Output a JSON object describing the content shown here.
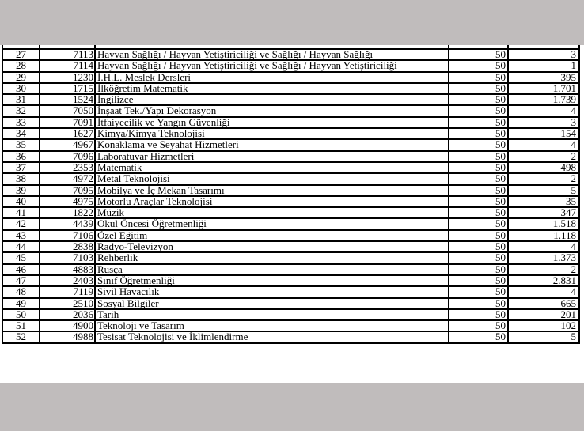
{
  "rows": [
    [
      "27",
      "7113",
      "Hayvan Sağlığı / Hayvan Yetiştiriciliği ve Sağlığı / Hayvan Sağlığı",
      "50",
      "3"
    ],
    [
      "28",
      "7114",
      "Hayvan Sağlığı / Hayvan Yetiştiriciliği ve Sağlığı / Hayvan Yetiştiriciliği",
      "50",
      "1"
    ],
    [
      "29",
      "1230",
      "İ.H.L. Meslek Dersleri",
      "50",
      "395"
    ],
    [
      "30",
      "1715",
      "İlköğretim Matematik",
      "50",
      "1.701"
    ],
    [
      "31",
      "1524",
      "İngilizce",
      "50",
      "1.739"
    ],
    [
      "32",
      "7050",
      "İnşaat Tek./Yapı Dekorasyon",
      "50",
      "4"
    ],
    [
      "33",
      "7091",
      "İtfaiyecilik ve Yangın Güvenliği",
      "50",
      "3"
    ],
    [
      "34",
      "1627",
      "Kimya/Kimya Teknolojisi",
      "50",
      "154"
    ],
    [
      "35",
      "4967",
      "Konaklama ve Seyahat Hizmetleri",
      "50",
      "4"
    ],
    [
      "36",
      "7096",
      "Laboratuvar Hizmetleri",
      "50",
      "2"
    ],
    [
      "37",
      "2353",
      "Matematik",
      "50",
      "498"
    ],
    [
      "38",
      "4972",
      "Metal Teknolojisi",
      "50",
      "2"
    ],
    [
      "39",
      "7095",
      "Mobilya ve İç Mekan Tasarımı",
      "50",
      "5"
    ],
    [
      "40",
      "4975",
      "Motorlu Araçlar Teknolojisi",
      "50",
      "35"
    ],
    [
      "41",
      "1822",
      "Müzik",
      "50",
      "347"
    ],
    [
      "42",
      "4439",
      "Okul Öncesi Öğretmenliği",
      "50",
      "1.518"
    ],
    [
      "43",
      "7106",
      "Özel Eğitim",
      "50",
      "1.118"
    ],
    [
      "44",
      "2838",
      "Radyo-Televizyon",
      "50",
      "4"
    ],
    [
      "45",
      "7103",
      "Rehberlik",
      "50",
      "1.373"
    ],
    [
      "46",
      "4883",
      "Rusça",
      "50",
      "2"
    ],
    [
      "47",
      "2403",
      "Sınıf Öğretmenliği",
      "50",
      "2.831"
    ],
    [
      "48",
      "7119",
      "Sivil Havacılık",
      "50",
      "4"
    ],
    [
      "49",
      "2510",
      "Sosyal Bilgiler",
      "50",
      "665"
    ],
    [
      "50",
      "2036",
      "Tarih",
      "50",
      "201"
    ],
    [
      "51",
      "4900",
      "Teknoloji ve Tasarım",
      "50",
      "102"
    ],
    [
      "52",
      "4988",
      "Tesisat Teknolojisi ve İklimlendirme",
      "50",
      "5"
    ]
  ]
}
